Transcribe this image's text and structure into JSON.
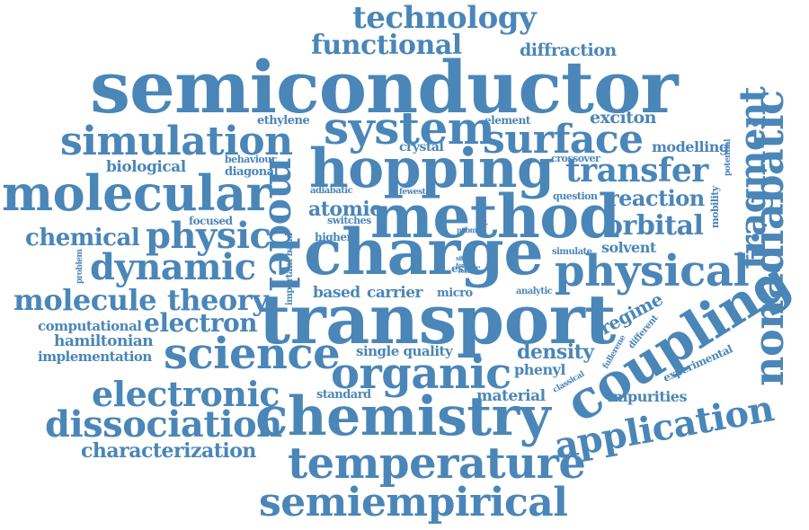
{
  "accent": "#4a86b8",
  "background": "#ffffff",
  "words": {
    "technology": "technology",
    "functional": "functional",
    "diffraction": "diffraction",
    "semiconductor": "semiconductor",
    "simulation": "simulation",
    "ethylene": "ethylene",
    "system": "system",
    "element": "element",
    "exciton": "exciton",
    "surface": "surface",
    "crystal": "crystal",
    "modelling": "modelling",
    "potential": "potential",
    "fragment": "fragment",
    "nonadiabatic": "nonadiabatic",
    "biological": "biological",
    "behaviour": "behaviour",
    "diagonal": "diagonal",
    "hopping": "hopping",
    "crossover": "crossover",
    "transfer": "transfer",
    "molecular": "molecular",
    "model": "model",
    "adiabatic": "adiabatic",
    "fewest": "fewest",
    "question": "question",
    "reaction": "reaction",
    "mobility": "mobility",
    "atomic": "atomic",
    "method": "method",
    "focused": "focused",
    "switches": "switches",
    "orbital": "orbital",
    "chemical": "chemical",
    "physic": "physic",
    "higher": "higher",
    "pcbm": "pcbm",
    "phase": "phase",
    "simulate": "simulate",
    "solvent": "solvent",
    "charge": "charge",
    "problem": "problem",
    "important_band": "important band",
    "dynamic": "dynamic",
    "site": "site",
    "force": "force",
    "result": "result",
    "ester": "ester",
    "physical": "physical",
    "molecule": "molecule",
    "theory": "theory",
    "based": "based",
    "carrier": "carrier",
    "micro": "micro",
    "analytic": "analytic",
    "regime": "regime",
    "computational": "computational",
    "electron": "electron",
    "transport": "transport",
    "coupling": "coupling",
    "hamiltonian": "hamiltonian",
    "fullerene": "fullerene",
    "different": "different",
    "implementation": "implementation",
    "single_quality": "single quality",
    "density": "density",
    "experimental": "experimental",
    "science": "science",
    "organic": "organic",
    "phenyl": "phenyl",
    "classical": "classical",
    "electronic": "electronic",
    "standard": "standard",
    "material": "material",
    "impurities": "impurities",
    "dissociation": "dissociation",
    "chemistry": "chemistry",
    "application": "application",
    "characterization": "characterization",
    "temperature": "temperature",
    "semiempirical": "semiempirical"
  }
}
